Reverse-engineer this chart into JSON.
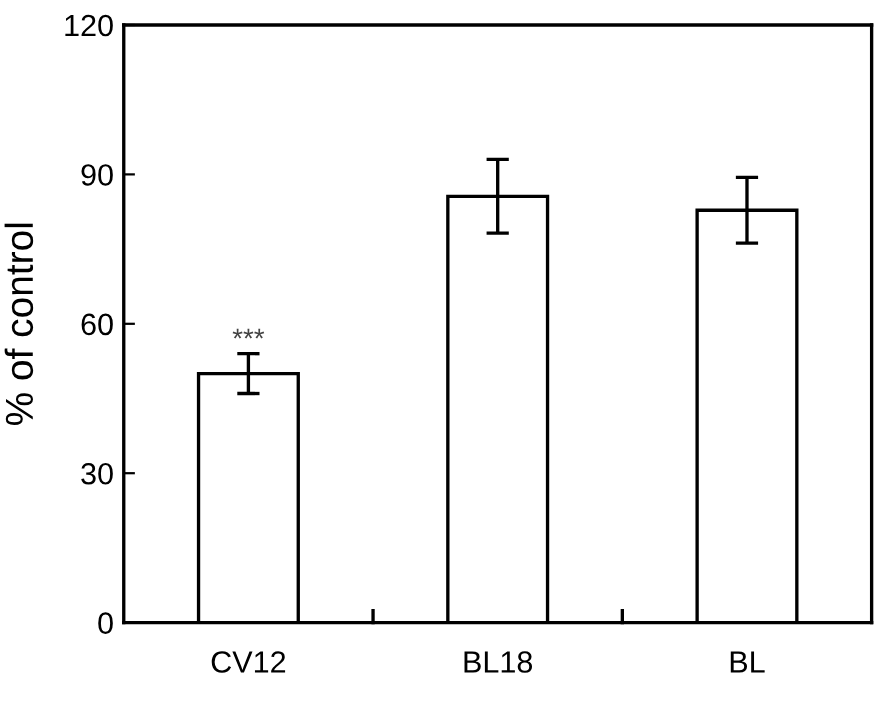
{
  "chart_data": {
    "type": "bar",
    "ylabel": "% of control",
    "categories": [
      "CV12",
      "BL18",
      "BL"
    ],
    "values": [
      50,
      85.6,
      82.8
    ],
    "errors": [
      4,
      7.4,
      6.6
    ],
    "color": "#ffffff",
    "ylim": [
      0,
      120
    ],
    "yticks": [
      0,
      30,
      60,
      90,
      120
    ],
    "grid": false,
    "annotations": [
      {
        "text": "***",
        "x": "CV12",
        "y": 54
      }
    ]
  }
}
